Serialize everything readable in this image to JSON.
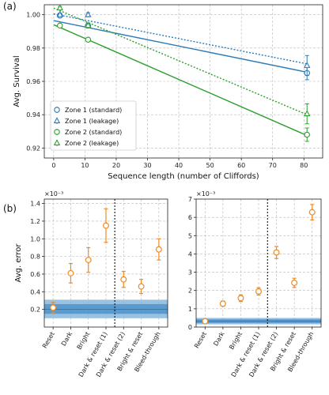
{
  "colors": {
    "blue": "#2c7bb6",
    "green": "#2ca02c",
    "orange": "#f08a24",
    "band_outer": "#7fb3db",
    "band_inner": "#4a90c8"
  },
  "panel_a_label": "(a)",
  "panel_b_label": "(b)",
  "chart_data": [
    {
      "type": "line",
      "xlabel": "Sequence length (number of Cliffords)",
      "ylabel": "Avg. Survival",
      "xlim": [
        -3,
        86
      ],
      "ylim": [
        0.914,
        1.006
      ],
      "xticks": [
        "0",
        "10",
        "20",
        "30",
        "40",
        "50",
        "60",
        "70",
        "80"
      ],
      "yticks": [
        "0.92",
        "0.94",
        "0.96",
        "0.98",
        "1.00"
      ],
      "grid": true,
      "legend_position": "lower-left",
      "series": [
        {
          "name": "Zone 1 (standard)",
          "color": "blue",
          "marker": "circle",
          "line": "solid",
          "x": [
            2,
            11,
            81
          ],
          "y": [
            0.9995,
            0.9935,
            0.965
          ],
          "err": [
            0.001,
            0.0015,
            0.004
          ],
          "fit": [
            [
              0,
              0.9965
            ],
            [
              81,
              0.9655
            ]
          ]
        },
        {
          "name": "Zone 1 (leakage)",
          "color": "blue",
          "marker": "triangle",
          "line": "dotted",
          "x": [
            2,
            11,
            81
          ],
          "y": [
            1.0,
            1.0,
            0.9695
          ],
          "err": [
            0.001,
            0.0012,
            0.006
          ],
          "fit": [
            [
              0,
              1.0005
            ],
            [
              81,
              0.9705
            ]
          ]
        },
        {
          "name": "Zone 2 (standard)",
          "color": "green",
          "marker": "circle",
          "line": "solid",
          "x": [
            2,
            11,
            81
          ],
          "y": [
            0.9935,
            0.985,
            0.928
          ],
          "err": [
            0.001,
            0.001,
            0.004
          ],
          "fit": [
            [
              0,
              0.994
            ],
            [
              81,
              0.9275
            ]
          ]
        },
        {
          "name": "Zone 2 (leakage)",
          "color": "green",
          "marker": "triangle",
          "line": "dotted",
          "x": [
            2,
            11,
            81
          ],
          "y": [
            1.004,
            0.9935,
            0.9405
          ],
          "err": [
            0.001,
            0.0012,
            0.006
          ],
          "fit": [
            [
              0,
              1.004
            ],
            [
              81,
              0.94
            ]
          ]
        }
      ]
    },
    {
      "type": "scatter",
      "ylabel": "Avg. error",
      "yexponent": "×10⁻³",
      "ylim": [
        0,
        1.45
      ],
      "yticks": [
        "0.2",
        "0.4",
        "0.6",
        "0.8",
        "1.0",
        "1.2",
        "1.4"
      ],
      "categories": [
        "Reset",
        "Dark",
        "Bright",
        "Dark & reset (1)",
        "Dark & reset (2)",
        "Bright & reset",
        "Bleed-through"
      ],
      "values": [
        0.22,
        0.61,
        0.76,
        1.15,
        0.54,
        0.46,
        0.88
      ],
      "errors": [
        0.06,
        0.11,
        0.14,
        0.19,
        0.09,
        0.08,
        0.12
      ],
      "band_outer": [
        0.1,
        0.31
      ],
      "band_inner": [
        0.15,
        0.26
      ],
      "band_center": 0.2,
      "divider_after": 3,
      "grid": true
    },
    {
      "type": "scatter",
      "yexponent": "×10⁻³",
      "ylim": [
        0,
        7
      ],
      "yticks": [
        "0",
        "1",
        "2",
        "3",
        "4",
        "5",
        "6",
        "7"
      ],
      "categories": [
        "Reset",
        "Dark",
        "Bright",
        "Dark & reset (1)",
        "Dark & reset (2)",
        "Bright & reset",
        "Bleed-through"
      ],
      "values": [
        0.32,
        1.28,
        1.58,
        1.95,
        4.08,
        2.42,
        6.28
      ],
      "errors": [
        0.06,
        0.14,
        0.18,
        0.2,
        0.33,
        0.25,
        0.42
      ],
      "band_outer": [
        0.15,
        0.5
      ],
      "band_inner": [
        0.22,
        0.42
      ],
      "band_center": 0.32,
      "divider_after": 3,
      "grid": true
    }
  ]
}
